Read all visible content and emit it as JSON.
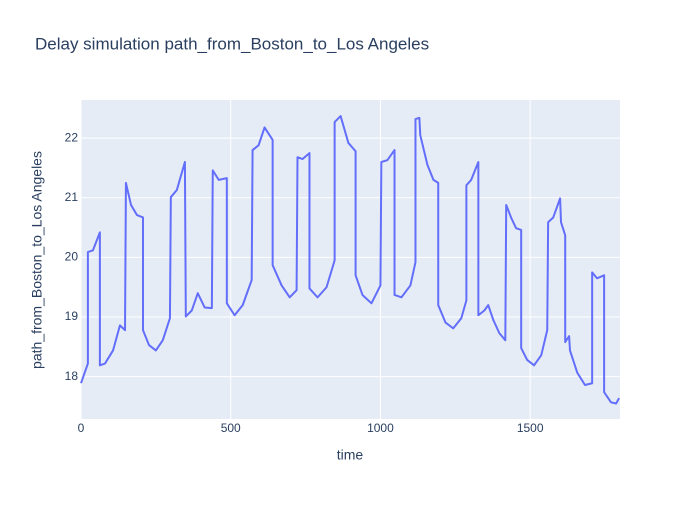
{
  "chart_data": {
    "type": "line",
    "title": "Delay simulation path_from_Boston_to_Los Angeles",
    "x_label": "time",
    "y_label": "path_from_Boston_to_Los Angeles",
    "xlim": [
      0,
      1800
    ],
    "ylim": [
      17.29,
      22.64
    ],
    "xticks": [
      0,
      500,
      1000,
      1500
    ],
    "yticks": [
      18,
      19,
      20,
      21,
      22
    ],
    "grid": true,
    "series": [
      {
        "name": "path_from_Boston_to_Los Angeles",
        "color": "#636efa",
        "x": [
          0,
          23,
          23,
          40,
          63,
          63,
          80,
          107,
          130,
          147,
          150,
          167,
          187,
          207,
          207,
          227,
          250,
          273,
          297,
          300,
          320,
          347,
          350,
          370,
          390,
          413,
          437,
          440,
          460,
          487,
          487,
          513,
          540,
          570,
          573,
          593,
          613,
          640,
          640,
          670,
          697,
          720,
          723,
          740,
          763,
          763,
          790,
          820,
          847,
          847,
          867,
          893,
          917,
          917,
          940,
          970,
          1000,
          1003,
          1023,
          1047,
          1047,
          1070,
          1100,
          1117,
          1117,
          1130,
          1133,
          1157,
          1177,
          1193,
          1193,
          1217,
          1243,
          1270,
          1287,
          1287,
          1303,
          1327,
          1327,
          1347,
          1360,
          1377,
          1397,
          1417,
          1420,
          1437,
          1453,
          1470,
          1470,
          1490,
          1513,
          1537,
          1557,
          1560,
          1577,
          1600,
          1603,
          1617,
          1617,
          1630,
          1633,
          1657,
          1683,
          1707,
          1707,
          1723,
          1747,
          1747,
          1770,
          1787,
          1797
        ],
        "values": [
          17.89,
          18.22,
          20.09,
          20.12,
          20.42,
          18.19,
          18.22,
          18.44,
          18.86,
          18.78,
          21.25,
          20.88,
          20.71,
          20.67,
          18.78,
          18.53,
          18.44,
          18.61,
          18.98,
          21.01,
          21.13,
          21.6,
          19.01,
          19.11,
          19.4,
          19.16,
          19.15,
          21.46,
          21.3,
          21.33,
          19.23,
          19.03,
          19.2,
          19.62,
          21.8,
          21.88,
          22.18,
          21.97,
          19.87,
          19.53,
          19.33,
          19.45,
          21.68,
          21.65,
          21.75,
          19.48,
          19.33,
          19.5,
          19.95,
          22.27,
          22.37,
          21.92,
          21.78,
          19.7,
          19.37,
          19.23,
          19.53,
          21.6,
          21.63,
          21.8,
          19.37,
          19.33,
          19.53,
          19.92,
          22.32,
          22.34,
          22.05,
          21.55,
          21.3,
          21.25,
          19.2,
          18.91,
          18.81,
          18.98,
          19.28,
          21.21,
          21.3,
          21.6,
          19.03,
          19.11,
          19.2,
          18.95,
          18.73,
          18.61,
          20.88,
          20.66,
          20.49,
          20.46,
          18.48,
          18.28,
          18.19,
          18.36,
          18.78,
          20.59,
          20.67,
          20.99,
          20.59,
          20.37,
          18.58,
          18.68,
          18.44,
          18.07,
          17.86,
          17.89,
          19.75,
          19.65,
          19.7,
          17.74,
          17.57,
          17.55,
          17.64
        ]
      }
    ]
  }
}
